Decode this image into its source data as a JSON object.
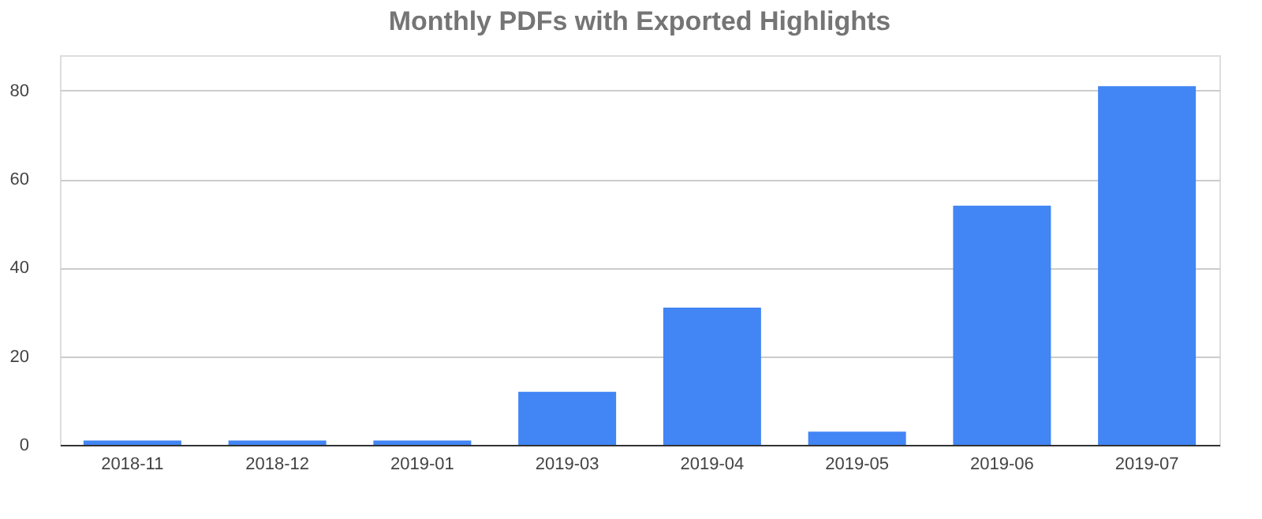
{
  "chart_data": {
    "type": "bar",
    "title": "Monthly PDFs with Exported Highlights",
    "categories": [
      "2018-11",
      "2018-12",
      "2019-01",
      "2019-03",
      "2019-04",
      "2019-05",
      "2019-06",
      "2019-07"
    ],
    "values": [
      1,
      1,
      1,
      12,
      31,
      3,
      54,
      81
    ],
    "color": "#4285f4",
    "ylim": [
      0,
      88
    ],
    "yticks": [
      0,
      20,
      40,
      60,
      80
    ],
    "grid": "y"
  }
}
